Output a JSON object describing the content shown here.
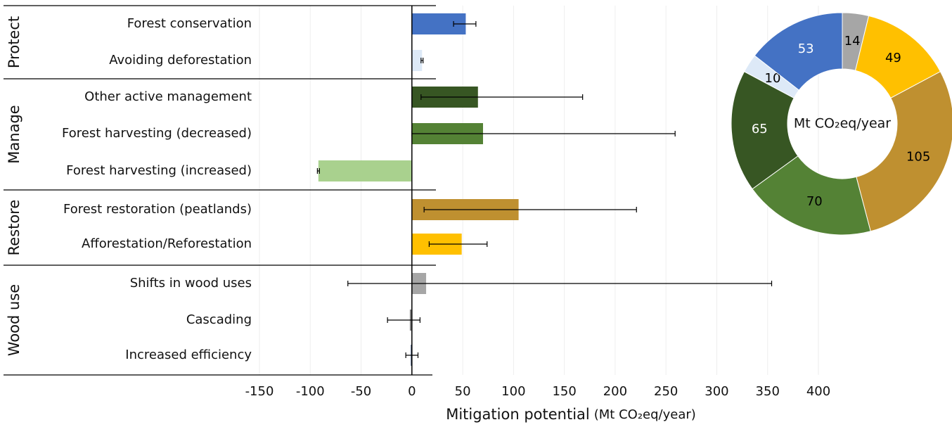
{
  "chart_data": [
    {
      "type": "bar",
      "orientation": "horizontal",
      "groups": [
        {
          "name": "Protect",
          "rows": [
            0,
            1
          ]
        },
        {
          "name": "Manage",
          "rows": [
            2,
            3,
            4
          ]
        },
        {
          "name": "Restore",
          "rows": [
            5,
            6
          ]
        },
        {
          "name": "Wood use",
          "rows": [
            7,
            8,
            9
          ]
        }
      ],
      "categories": [
        "Forest conservation",
        "Avoiding deforestation",
        "Other active management",
        "Forest harvesting (decreased)",
        "Forest harvesting (increased)",
        "Forest restoration (peatlands)",
        "Afforestation/Reforestation",
        "Shifts in wood uses",
        "Cascading",
        "Increased efficiency"
      ],
      "values": [
        53,
        10,
        65,
        70,
        -92,
        105,
        49,
        14,
        -2,
        -1
      ],
      "error_low": [
        41,
        9,
        9,
        0,
        -93,
        12,
        17,
        -63,
        -24,
        -6
      ],
      "error_high": [
        63,
        11,
        168,
        259,
        -91,
        221,
        74,
        354,
        8,
        6
      ],
      "colors": [
        "#4472c4",
        "#dde9f7",
        "#375623",
        "#548235",
        "#a9d18e",
        "#bf9030",
        "#ffc000",
        "#a6a6a6",
        "#7f7f7f",
        "#1f3864"
      ],
      "xlim": [
        -150,
        400
      ],
      "xticks": [
        -150,
        -100,
        -50,
        0,
        50,
        100,
        150,
        200,
        250,
        300,
        350,
        400
      ],
      "x_label": "Mitigation potential",
      "x_unit": "(Mt CO₂eq/year)",
      "grid": true
    },
    {
      "type": "pie",
      "donut": true,
      "center_label": "Mt CO₂eq/year",
      "values": [
        14,
        49,
        105,
        70,
        65,
        10,
        53
      ],
      "colors": [
        "#a6a6a6",
        "#ffc000",
        "#bf9030",
        "#548235",
        "#375623",
        "#dde9f7",
        "#4472c4"
      ],
      "label_colors": [
        "#000",
        "#000",
        "#000",
        "#000",
        "#fff",
        "#000",
        "#fff"
      ]
    }
  ]
}
